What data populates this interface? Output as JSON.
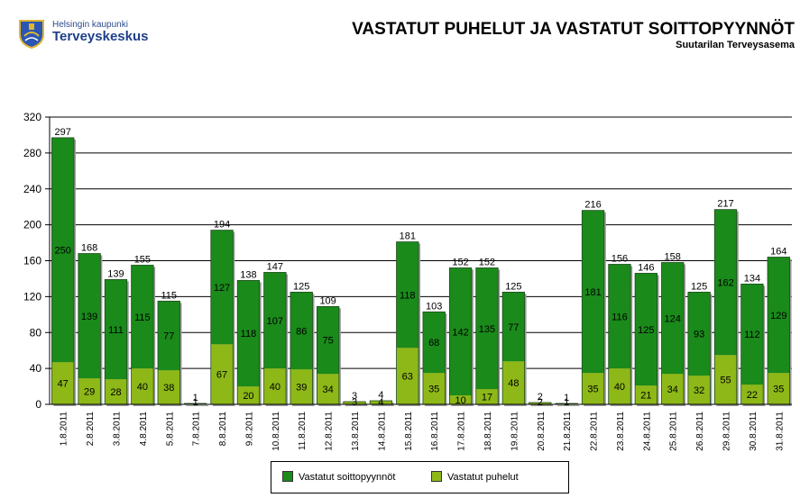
{
  "header": {
    "logo_line1": "Helsingin kaupunki",
    "logo_line2": "Terveyskeskus",
    "title": "VASTATUT PUHELUT JA VASTATUT SOITTOPYYNNÖT",
    "subtitle": "Suutarilan Terveysasema"
  },
  "colors": {
    "soittopyynnot": "#1a8a1a",
    "puhelut": "#8db817",
    "grid": "#000000"
  },
  "chart_data": {
    "type": "bar",
    "stacked": true,
    "title": "VASTATUT PUHELUT JA VASTATUT SOITTOPYYNNÖT",
    "subtitle": "Suutarilan Terveysasema",
    "ylim": [
      0,
      320
    ],
    "yticks": [
      0,
      40,
      80,
      120,
      160,
      200,
      240,
      280,
      320
    ],
    "grid": true,
    "legend_position": "bottom-center",
    "categories": [
      "1.8.2011",
      "2.8.2011",
      "3.8.2011",
      "4.8.2011",
      "5.8.2011",
      "7.8.2011",
      "8.8.2011",
      "9.8.2011",
      "10.8.2011",
      "11.8.2011",
      "12.8.2011",
      "13.8.2011",
      "14.8.2011",
      "15.8.2011",
      "16.8.2011",
      "17.8.2011",
      "18.8.2011",
      "19.8.2011",
      "20.8.2011",
      "21.8.2011",
      "22.8.2011",
      "23.8.2011",
      "24.8.2011",
      "25.8.2011",
      "26.8.2011",
      "29.8.2011",
      "30.8.2011",
      "31.8.2011"
    ],
    "series": [
      {
        "name": "Vastatut puhelut",
        "values": [
          47,
          29,
          28,
          40,
          38,
          1,
          67,
          20,
          40,
          39,
          34,
          3,
          4,
          63,
          35,
          10,
          17,
          48,
          2,
          1,
          35,
          40,
          21,
          34,
          32,
          55,
          22,
          35
        ]
      },
      {
        "name": "Vastatut soittopyynnöt",
        "values": [
          250,
          139,
          111,
          115,
          77,
          0,
          127,
          118,
          107,
          86,
          75,
          0,
          0,
          118,
          68,
          142,
          135,
          77,
          0,
          0,
          181,
          116,
          125,
          124,
          93,
          162,
          112,
          129
        ]
      }
    ],
    "segment_labels": {
      "Vastatut puhelut": [
        "47",
        "29",
        "28",
        "40",
        "38",
        "1",
        "67",
        "20",
        "40",
        "39",
        "34",
        "3",
        "4",
        "63",
        "35",
        "10",
        "17",
        "48",
        "2",
        "1",
        "35",
        "40",
        "21",
        "34",
        "32",
        "55",
        "22",
        "35"
      ],
      "Vastatut soittopyynnöt": [
        "250",
        "139",
        "111",
        "115",
        "77",
        "",
        "127",
        "118",
        "107",
        "86",
        "75",
        "",
        "",
        "118",
        "68",
        "142",
        "135",
        "77",
        "",
        "",
        "181",
        "116",
        "125",
        "124",
        "93",
        "162",
        "112",
        "129"
      ]
    },
    "totals": [
      297,
      168,
      139,
      155,
      115,
      1,
      194,
      138,
      147,
      125,
      109,
      3,
      4,
      181,
      103,
      152,
      152,
      125,
      2,
      1,
      216,
      156,
      146,
      158,
      125,
      217,
      134,
      164
    ],
    "legend": [
      "Vastatut soittopyynnöt",
      "Vastatut puhelut"
    ]
  }
}
